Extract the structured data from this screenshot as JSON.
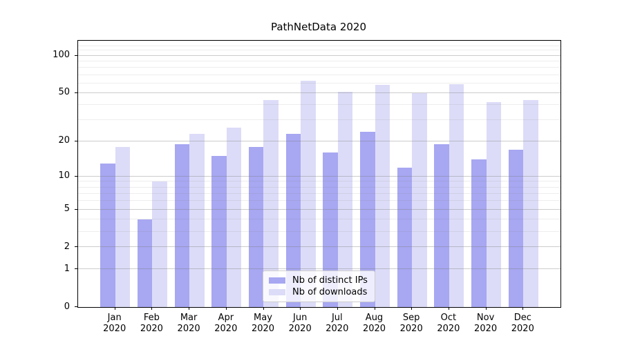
{
  "title": "PathNetData 2020",
  "chart_data": {
    "type": "bar",
    "title": "PathNetData 2020",
    "categories": [
      "Jan 2020",
      "Feb 2020",
      "Mar 2020",
      "Apr 2020",
      "May 2020",
      "Jun 2020",
      "Jul 2020",
      "Aug 2020",
      "Sep 2020",
      "Oct 2020",
      "Nov 2020",
      "Dec 2020"
    ],
    "series": [
      {
        "name": "Nb of distinct IPs",
        "color": "#a7a7f2",
        "values": [
          13,
          4,
          19,
          15,
          18,
          23,
          16,
          24,
          12,
          19,
          14,
          17
        ]
      },
      {
        "name": "Nb of downloads",
        "color": "#dcdcf8",
        "values": [
          18,
          9,
          23,
          26,
          44,
          63,
          51,
          58,
          50,
          59,
          42,
          44
        ]
      }
    ],
    "xlabel": "",
    "ylabel": "",
    "yscale": "symlog-log10(1+v)",
    "ylim": [
      0,
      132
    ],
    "xlim_categories": [
      -1,
      12
    ],
    "y_major_ticks": [
      0,
      1,
      2,
      5,
      10,
      20,
      50,
      100
    ],
    "y_minor_ticks": [
      3,
      4,
      6,
      7,
      8,
      9,
      30,
      40,
      60,
      70,
      80,
      90,
      110,
      120,
      130
    ],
    "grid": true,
    "legend_position": "lower center",
    "colors": {
      "bar_ips": "#a7a7f2",
      "bar_downloads": "#dcdcf8",
      "grid_major": "#cccccc",
      "grid_minor": "#ececec",
      "spine": "#000000",
      "background": "#ffffff"
    }
  }
}
